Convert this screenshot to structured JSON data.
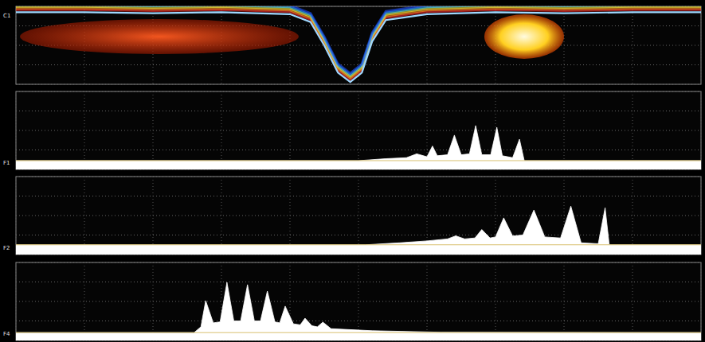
{
  "chart_data": [
    {
      "type": "line",
      "title": "C1",
      "color": "#9fd8ff",
      "x": [
        0,
        1,
        2,
        3,
        4,
        4.3,
        4.5,
        4.7,
        4.88,
        5.05,
        5.2,
        5.4,
        6,
        7,
        8,
        9,
        10
      ],
      "values": [
        3.7,
        3.7,
        3.65,
        3.7,
        3.6,
        3.2,
        2.0,
        0.6,
        0.12,
        0.6,
        2.2,
        3.3,
        3.6,
        3.7,
        3.65,
        3.7,
        3.7
      ],
      "xlim": [
        0,
        10
      ],
      "ylim": [
        0,
        4
      ],
      "xticks": [
        0,
        1,
        2,
        3,
        4,
        5,
        6,
        7,
        8,
        9,
        10
      ],
      "yticks": [
        0,
        1,
        2,
        3,
        4
      ],
      "grid": true,
      "tick_labels": false
    },
    {
      "type": "area",
      "title": "F1",
      "color": "#ffffff",
      "x": [
        0,
        5.0,
        5.4,
        5.7,
        5.85,
        6.0,
        6.08,
        6.15,
        6.3,
        6.4,
        6.5,
        6.62,
        6.71,
        6.8,
        6.93,
        7.02,
        7.1,
        7.25,
        7.35,
        7.42,
        10
      ],
      "values": [
        0.45,
        0.45,
        0.55,
        0.6,
        0.8,
        0.65,
        1.2,
        0.7,
        0.75,
        1.76,
        0.75,
        0.8,
        2.25,
        0.75,
        0.75,
        2.16,
        0.7,
        0.6,
        1.55,
        0.45,
        0.45
      ],
      "xlim": [
        0,
        10
      ],
      "ylim": [
        0,
        4
      ],
      "xticks": [
        0,
        1,
        2,
        3,
        4,
        5,
        6,
        7,
        8,
        9,
        10
      ],
      "yticks": [
        0,
        1,
        2,
        3,
        4
      ],
      "grid": true,
      "tick_labels": false
    },
    {
      "type": "area",
      "title": "F2",
      "color": "#ffffff",
      "x": [
        0,
        5.1,
        5.6,
        6.0,
        6.3,
        6.42,
        6.55,
        6.7,
        6.8,
        6.92,
        7.0,
        7.12,
        7.25,
        7.4,
        7.56,
        7.72,
        7.95,
        8.1,
        8.25,
        8.5,
        8.6,
        8.66,
        10
      ],
      "values": [
        0.5,
        0.5,
        0.6,
        0.7,
        0.8,
        0.96,
        0.8,
        0.85,
        1.28,
        0.85,
        0.9,
        1.88,
        0.95,
        1.0,
        2.28,
        0.9,
        0.85,
        2.48,
        0.6,
        0.55,
        2.4,
        0.5,
        0.5
      ],
      "xlim": [
        0,
        10
      ],
      "ylim": [
        0,
        4
      ],
      "xticks": [
        0,
        1,
        2,
        3,
        4,
        5,
        6,
        7,
        8,
        9,
        10
      ],
      "yticks": [
        0,
        1,
        2,
        3,
        4
      ],
      "grid": true,
      "tick_labels": false
    },
    {
      "type": "area",
      "title": "F4",
      "color": "#ffffff",
      "x": [
        0,
        2.6,
        2.7,
        2.77,
        2.88,
        2.98,
        3.08,
        3.18,
        3.28,
        3.38,
        3.48,
        3.57,
        3.67,
        3.78,
        3.85,
        3.93,
        4.05,
        4.15,
        4.22,
        4.32,
        4.4,
        4.48,
        4.6,
        5.2,
        6.2,
        10
      ],
      "values": [
        0.4,
        0.4,
        0.7,
        2.04,
        0.9,
        0.95,
        2.98,
        1.0,
        1.0,
        2.86,
        1.0,
        1.0,
        2.53,
        0.95,
        0.9,
        1.76,
        0.85,
        0.8,
        1.14,
        0.75,
        0.7,
        0.94,
        0.6,
        0.5,
        0.42,
        0.4
      ],
      "xlim": [
        0,
        10
      ],
      "ylim": [
        0,
        4
      ],
      "xticks": [
        0,
        1,
        2,
        3,
        4,
        5,
        6,
        7,
        8,
        9,
        10
      ],
      "yticks": [
        0,
        1,
        2,
        3,
        4
      ],
      "grid": true,
      "tick_labels": false
    }
  ]
}
